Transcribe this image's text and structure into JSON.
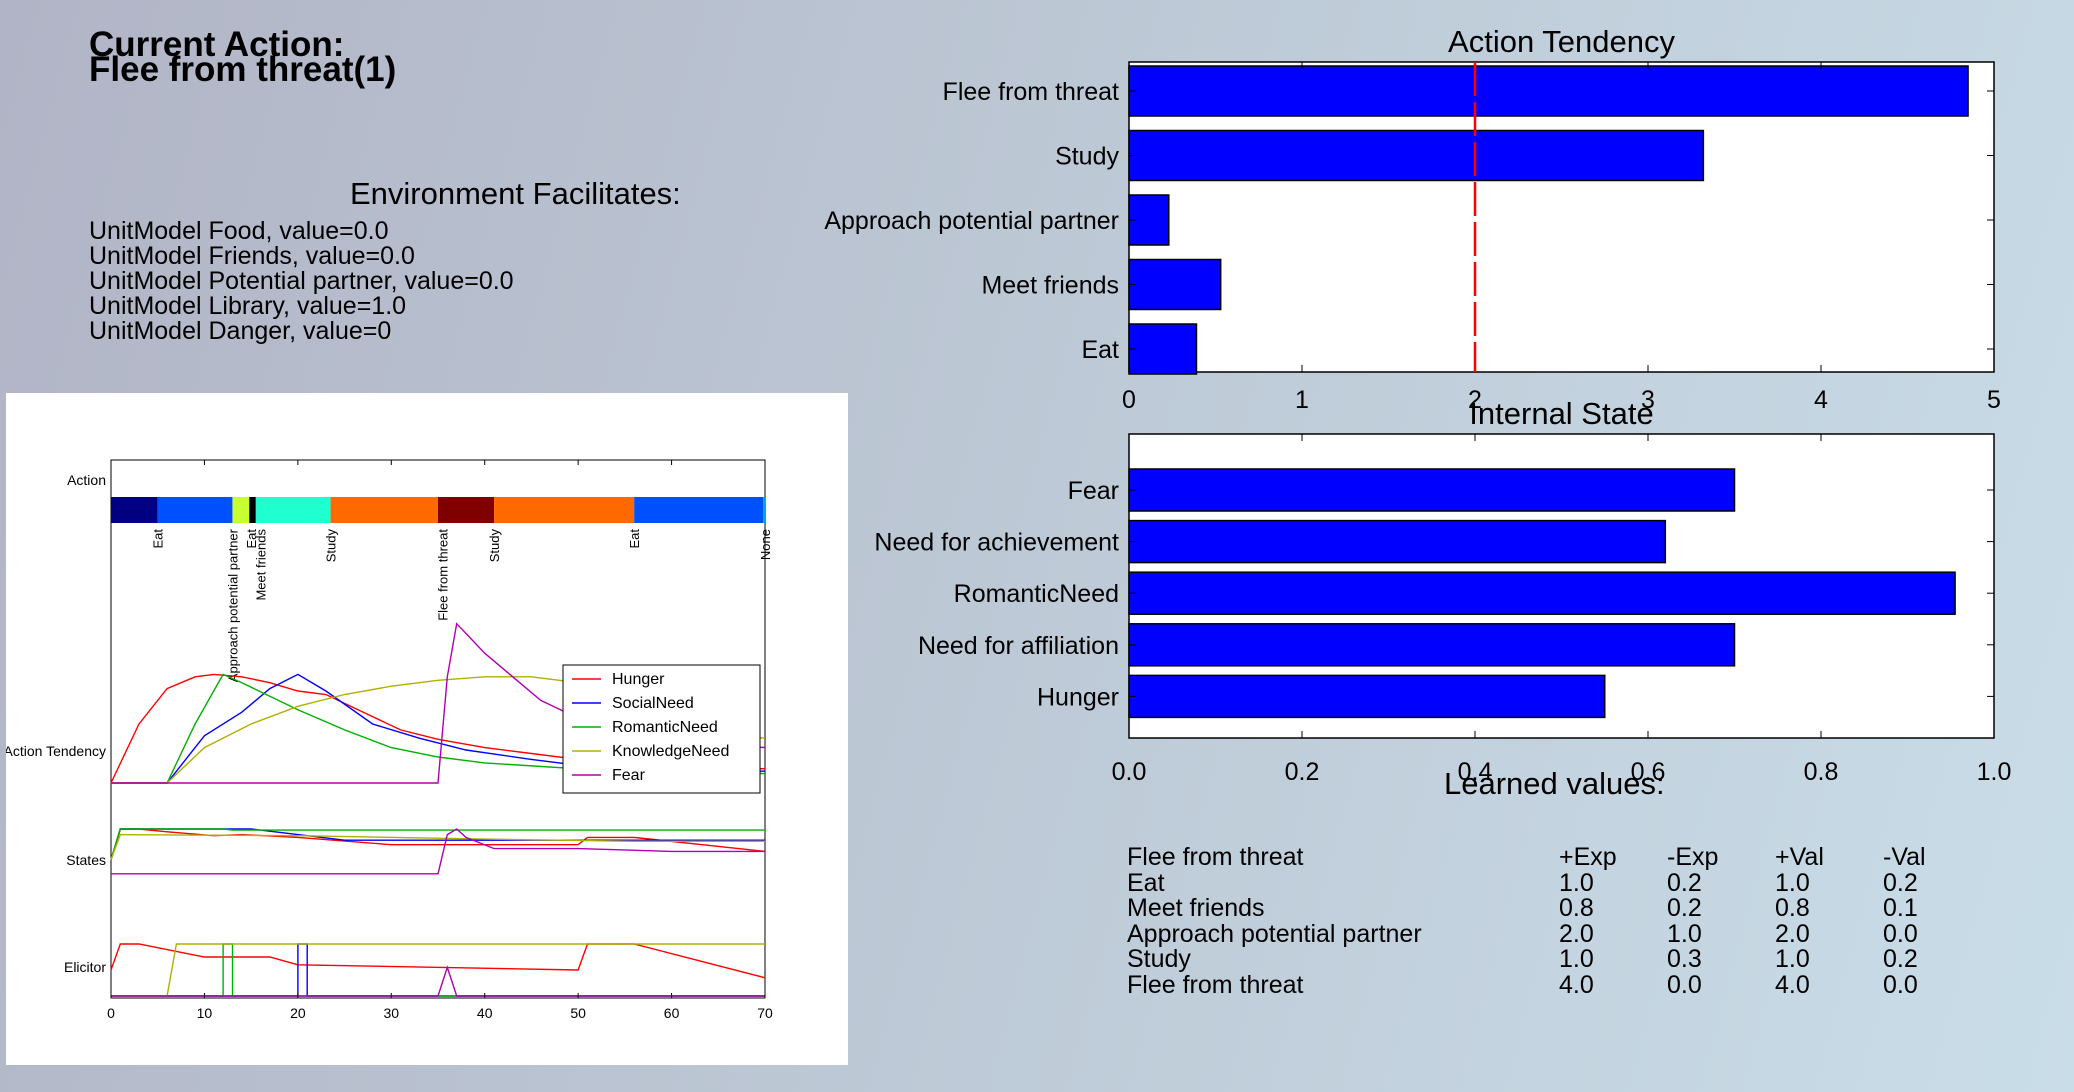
{
  "current_action": {
    "title": "Current Action:",
    "value": "Flee from threat(1)"
  },
  "environment": {
    "title": "Environment Facilitates:",
    "items": [
      "UnitModel Food, value=0.0",
      "UnitModel Friends, value=0.0",
      "UnitModel Potential partner, value=0.0",
      "UnitModel Library, value=1.0",
      "UnitModel Danger, value=0"
    ]
  },
  "colors": {
    "bar": "#0000ff",
    "threshold_line": "#ff0000"
  },
  "chart_data": [
    {
      "type": "bar",
      "orientation": "horizontal",
      "title": "Action Tendency",
      "categories": [
        "Flee from threat",
        "Study",
        "Approach potential partner",
        "Meet friends",
        "Eat"
      ],
      "values": [
        4.85,
        3.32,
        0.23,
        0.53,
        0.39
      ],
      "xlim": [
        0,
        5
      ],
      "xticks": [
        "0",
        "1",
        "2",
        "3",
        "4",
        "5"
      ],
      "threshold": 2
    },
    {
      "type": "bar",
      "orientation": "horizontal",
      "title": "Internal State",
      "categories": [
        "Fear",
        "Need for achievement",
        "RomanticNeed",
        "Need for affiliation",
        "Hunger"
      ],
      "values": [
        0.7,
        0.62,
        0.955,
        0.7,
        0.55
      ],
      "xlim": [
        0,
        1
      ],
      "xticks": [
        "0.0",
        "0.2",
        "0.4",
        "0.6",
        "0.8",
        "1.0"
      ]
    },
    {
      "type": "line",
      "xlim": [
        0,
        70
      ],
      "xticks": [
        "0",
        "10",
        "20",
        "30",
        "40",
        "50",
        "60",
        "70"
      ],
      "row_labels": [
        "Action",
        "Action Tendency",
        "States",
        "Elicitor"
      ],
      "action_timeline": {
        "segments": [
          {
            "start": 0,
            "end": 5,
            "color": "#000080"
          },
          {
            "start": 5,
            "end": 13,
            "color": "#0050ff"
          },
          {
            "start": 13,
            "end": 14.8,
            "color": "#c8ff30"
          },
          {
            "start": 14.8,
            "end": 15.5,
            "color": "#000000"
          },
          {
            "start": 15.5,
            "end": 23.5,
            "color": "#20ffd0"
          },
          {
            "start": 23.5,
            "end": 35,
            "color": "#ff6a00"
          },
          {
            "start": 35,
            "end": 41,
            "color": "#800000"
          },
          {
            "start": 41,
            "end": 56,
            "color": "#ff6a00"
          },
          {
            "start": 56,
            "end": 69.8,
            "color": "#0050ff"
          },
          {
            "start": 69.8,
            "end": 70,
            "color": "#00a0ff"
          }
        ],
        "labels": [
          {
            "x": 5,
            "text": "Eat"
          },
          {
            "x": 13,
            "text": "Approach potential partner"
          },
          {
            "x": 15,
            "text": "Eat"
          },
          {
            "x": 16,
            "text": "Meet friends"
          },
          {
            "x": 23.5,
            "text": "Study"
          },
          {
            "x": 35.5,
            "text": "Flee from threat"
          },
          {
            "x": 41,
            "text": "Study"
          },
          {
            "x": 56,
            "text": "Eat"
          },
          {
            "x": 70,
            "text": "None"
          }
        ]
      },
      "series": [
        {
          "name": "Hunger",
          "color": "#ff0000",
          "tendency": [
            [
              0,
              0
            ],
            [
              3,
              0.5
            ],
            [
              6,
              0.8
            ],
            [
              9,
              0.9
            ],
            [
              11,
              0.92
            ],
            [
              14,
              0.9
            ],
            [
              17,
              0.85
            ],
            [
              20,
              0.78
            ],
            [
              23,
              0.75
            ],
            [
              27,
              0.6
            ],
            [
              31,
              0.45
            ],
            [
              35,
              0.37
            ],
            [
              40,
              0.3
            ],
            [
              45,
              0.25
            ],
            [
              50,
              0.2
            ],
            [
              55,
              0.17
            ],
            [
              60,
              0.15
            ],
            [
              65,
              0.13
            ],
            [
              70,
              0.12
            ]
          ],
          "states": [
            [
              0,
              0.45
            ],
            [
              1,
              1
            ],
            [
              3,
              1
            ],
            [
              6,
              0.95
            ],
            [
              11,
              0.88
            ],
            [
              14,
              0.9
            ],
            [
              20,
              0.85
            ],
            [
              30,
              0.72
            ],
            [
              40,
              0.72
            ],
            [
              50,
              0.72
            ],
            [
              51,
              0.85
            ],
            [
              56,
              0.85
            ],
            [
              70,
              0.6
            ]
          ],
          "elicitor": [
            [
              0,
              0.5
            ],
            [
              1,
              1
            ],
            [
              3,
              1
            ],
            [
              10,
              0.75
            ],
            [
              17,
              0.75
            ],
            [
              20,
              0.6
            ],
            [
              50,
              0.5
            ],
            [
              51,
              1
            ],
            [
              56,
              1
            ],
            [
              70,
              0.35
            ]
          ]
        },
        {
          "name": "SocialNeed",
          "color": "#0000ff",
          "tendency": [
            [
              0,
              0
            ],
            [
              6,
              0
            ],
            [
              10,
              0.4
            ],
            [
              14,
              0.6
            ],
            [
              17,
              0.8
            ],
            [
              20,
              0.92
            ],
            [
              23,
              0.78
            ],
            [
              28,
              0.5
            ],
            [
              33,
              0.38
            ],
            [
              38,
              0.28
            ],
            [
              45,
              0.2
            ],
            [
              50,
              0.15
            ],
            [
              55,
              0.12
            ],
            [
              60,
              0.1
            ],
            [
              70,
              0.1
            ]
          ],
          "states": [
            [
              0,
              0.45
            ],
            [
              1,
              1
            ],
            [
              15,
              1
            ],
            [
              20,
              0.9
            ],
            [
              25,
              0.8
            ],
            [
              35,
              0.8
            ],
            [
              50,
              0.8
            ],
            [
              70,
              0.8
            ]
          ],
          "elicitor": [
            [
              0,
              0
            ],
            [
              20,
              0
            ],
            [
              20,
              1
            ],
            [
              21,
              1
            ],
            [
              21,
              0
            ],
            [
              70,
              0
            ]
          ]
        },
        {
          "name": "RomanticNeed",
          "color": "#00b000",
          "tendency": [
            [
              0,
              0
            ],
            [
              6,
              0
            ],
            [
              9,
              0.5
            ],
            [
              12,
              0.92
            ],
            [
              14,
              0.85
            ],
            [
              20,
              0.62
            ],
            [
              25,
              0.45
            ],
            [
              30,
              0.3
            ],
            [
              35,
              0.22
            ],
            [
              40,
              0.17
            ],
            [
              50,
              0.12
            ],
            [
              60,
              0.1
            ],
            [
              70,
              0.08
            ]
          ],
          "states": [
            [
              0,
              0.45
            ],
            [
              1,
              1
            ],
            [
              10,
              1
            ],
            [
              12,
              1
            ],
            [
              13,
              0.98
            ],
            [
              70,
              0.98
            ]
          ],
          "elicitor": [
            [
              0,
              0
            ],
            [
              12,
              0
            ],
            [
              12,
              1
            ],
            [
              13,
              1
            ],
            [
              13,
              0
            ],
            [
              70,
              0
            ]
          ]
        },
        {
          "name": "KnowledgeNeed",
          "color": "#b0b000",
          "tendency": [
            [
              0,
              0
            ],
            [
              6,
              0
            ],
            [
              10,
              0.3
            ],
            [
              15,
              0.5
            ],
            [
              20,
              0.65
            ],
            [
              25,
              0.75
            ],
            [
              30,
              0.82
            ],
            [
              35,
              0.87
            ],
            [
              40,
              0.9
            ],
            [
              45,
              0.9
            ],
            [
              50,
              0.85
            ],
            [
              55,
              0.6
            ],
            [
              60,
              0.5
            ],
            [
              65,
              0.42
            ],
            [
              70,
              0.38
            ]
          ],
          "states": [
            [
              0,
              0.45
            ],
            [
              1,
              0.9
            ],
            [
              20,
              0.88
            ],
            [
              40,
              0.82
            ],
            [
              56,
              0.78
            ],
            [
              70,
              0.78
            ]
          ],
          "elicitor": [
            [
              0,
              0
            ],
            [
              6,
              0
            ],
            [
              7,
              1
            ],
            [
              70,
              1
            ]
          ]
        },
        {
          "name": "Fear",
          "color": "#b000b0",
          "tendency": [
            [
              0,
              0
            ],
            [
              35,
              0
            ],
            [
              36,
              0.9
            ],
            [
              37,
              1.35
            ],
            [
              40,
              1.1
            ],
            [
              43,
              0.9
            ],
            [
              46,
              0.7
            ],
            [
              50,
              0.55
            ],
            [
              55,
              0.45
            ],
            [
              60,
              0.38
            ],
            [
              65,
              0.33
            ],
            [
              70,
              0.3
            ]
          ],
          "states": [
            [
              0,
              0.2
            ],
            [
              35,
              0.2
            ],
            [
              36,
              0.9
            ],
            [
              37,
              1
            ],
            [
              38,
              0.85
            ],
            [
              41,
              0.65
            ],
            [
              50,
              0.65
            ],
            [
              60,
              0.6
            ],
            [
              70,
              0.6
            ]
          ],
          "elicitor": [
            [
              0,
              0
            ],
            [
              35,
              0
            ],
            [
              36,
              0.55
            ],
            [
              37,
              0
            ],
            [
              70,
              0
            ]
          ]
        }
      ]
    }
  ],
  "learned_values": {
    "title": "Learned values:",
    "header": {
      "action": "Flee from threat",
      "cols": [
        "+Exp",
        "-Exp",
        "+Val",
        "-Val"
      ]
    },
    "rows": [
      {
        "action": "Eat",
        "v": [
          "1.0",
          "0.2",
          "1.0",
          "0.2"
        ]
      },
      {
        "action": "Meet friends",
        "v": [
          "0.8",
          "0.2",
          "0.8",
          "0.1"
        ]
      },
      {
        "action": "Approach potential partner",
        "v": [
          "2.0",
          "1.0",
          "2.0",
          "0.0"
        ]
      },
      {
        "action": "Study",
        "v": [
          "1.0",
          "0.3",
          "1.0",
          "0.2"
        ]
      },
      {
        "action": "Flee from threat",
        "v": [
          "4.0",
          "0.0",
          "4.0",
          "0.0"
        ]
      }
    ]
  }
}
